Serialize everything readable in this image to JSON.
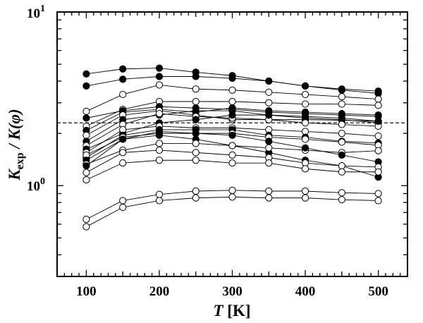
{
  "chart_data": {
    "type": "line",
    "title": "",
    "xlabel": "T [K]",
    "xlabel_italic": "T",
    "xlabel_unit": "[K]",
    "ylabel_main": "K",
    "ylabel_sub": "exp",
    "ylabel_rest": " / K(φ)",
    "ylabel": "K_exp / K(φ)",
    "xlim": [
      60,
      540
    ],
    "ylim": [
      0.3,
      10
    ],
    "yscale": "log",
    "x_ticks": [
      100,
      200,
      300,
      400,
      500
    ],
    "x_tick_labels": [
      "100",
      "200",
      "300",
      "400",
      "500"
    ],
    "y_tick_labels": [
      {
        "value": 10,
        "base": "10",
        "exp": "1"
      },
      {
        "value": 1,
        "base": "10",
        "exp": "0"
      }
    ],
    "reference_line": {
      "y": 2.3,
      "style": "dashed"
    },
    "x": [
      100,
      150,
      200,
      250,
      300,
      350,
      400,
      450,
      500
    ],
    "colors": {
      "line": "#000000",
      "marker_filled": "#000000",
      "marker_open": "#ffffff"
    },
    "series": [
      {
        "name": "s1",
        "filled": true,
        "values": [
          4.4,
          4.7,
          4.75,
          4.5,
          4.3,
          4.0,
          3.75,
          3.6,
          3.5
        ]
      },
      {
        "name": "s2",
        "filled": true,
        "values": [
          3.75,
          4.1,
          4.25,
          4.25,
          4.15,
          4.0,
          3.75,
          3.55,
          3.4
        ]
      },
      {
        "name": "s3",
        "filled": false,
        "values": [
          2.68,
          3.35,
          3.8,
          3.6,
          3.55,
          3.45,
          3.35,
          3.25,
          3.15
        ]
      },
      {
        "name": "s4",
        "filled": false,
        "values": [
          2.2,
          2.75,
          3.05,
          3.05,
          3.05,
          3.0,
          2.95,
          2.95,
          2.9
        ]
      },
      {
        "name": "s5",
        "filled": true,
        "values": [
          2.45,
          2.7,
          2.85,
          2.8,
          2.75,
          2.65,
          2.6,
          2.55,
          2.5
        ]
      },
      {
        "name": "s6",
        "filled": true,
        "values": [
          2.08,
          2.65,
          2.75,
          2.65,
          2.8,
          2.7,
          2.65,
          2.6,
          2.55
        ]
      },
      {
        "name": "s7",
        "filled": false,
        "values": [
          1.95,
          2.55,
          2.7,
          2.55,
          2.4,
          2.4,
          2.4,
          2.38,
          2.35
        ]
      },
      {
        "name": "s8",
        "filled": true,
        "values": [
          1.8,
          2.4,
          2.55,
          2.7,
          2.7,
          2.55,
          2.45,
          2.4,
          2.3
        ]
      },
      {
        "name": "s9",
        "filled": false,
        "values": [
          1.7,
          2.25,
          2.6,
          2.5,
          2.45,
          2.4,
          2.3,
          2.25,
          2.2
        ]
      },
      {
        "name": "s10",
        "filled": true,
        "values": [
          1.62,
          2.0,
          2.3,
          2.4,
          2.55,
          2.55,
          2.5,
          2.45,
          2.35
        ]
      },
      {
        "name": "s11",
        "filled": false,
        "values": [
          1.55,
          2.1,
          2.2,
          2.15,
          2.15,
          2.1,
          2.05,
          2.0,
          1.93
        ]
      },
      {
        "name": "s12",
        "filled": true,
        "values": [
          1.45,
          1.95,
          2.1,
          2.1,
          2.1,
          1.95,
          1.9,
          1.8,
          1.76
        ]
      },
      {
        "name": "s13",
        "filled": false,
        "values": [
          1.5,
          1.9,
          2.0,
          2.0,
          2.0,
          1.9,
          1.85,
          1.78,
          1.71
        ]
      },
      {
        "name": "s14",
        "filled": true,
        "values": [
          1.4,
          1.85,
          1.95,
          1.85,
          1.7,
          1.55,
          1.4,
          1.3,
          1.12
        ]
      },
      {
        "name": "s15",
        "filled": false,
        "values": [
          1.33,
          1.6,
          1.75,
          1.75,
          1.7,
          1.65,
          1.6,
          1.55,
          1.59
        ]
      },
      {
        "name": "s16",
        "filled": true,
        "values": [
          1.3,
          1.85,
          2.05,
          2.0,
          1.95,
          1.8,
          1.65,
          1.5,
          1.37
        ]
      },
      {
        "name": "s17",
        "filled": false,
        "values": [
          1.19,
          1.55,
          1.6,
          1.55,
          1.5,
          1.45,
          1.35,
          1.3,
          1.28
        ]
      },
      {
        "name": "s18",
        "filled": false,
        "values": [
          1.08,
          1.35,
          1.4,
          1.4,
          1.35,
          1.35,
          1.25,
          1.2,
          1.2
        ]
      },
      {
        "name": "s19",
        "filled": false,
        "values": [
          0.64,
          0.82,
          0.89,
          0.93,
          0.94,
          0.93,
          0.93,
          0.91,
          0.9
        ]
      },
      {
        "name": "s20",
        "filled": false,
        "values": [
          0.58,
          0.75,
          0.82,
          0.85,
          0.86,
          0.85,
          0.85,
          0.83,
          0.82
        ]
      }
    ]
  }
}
